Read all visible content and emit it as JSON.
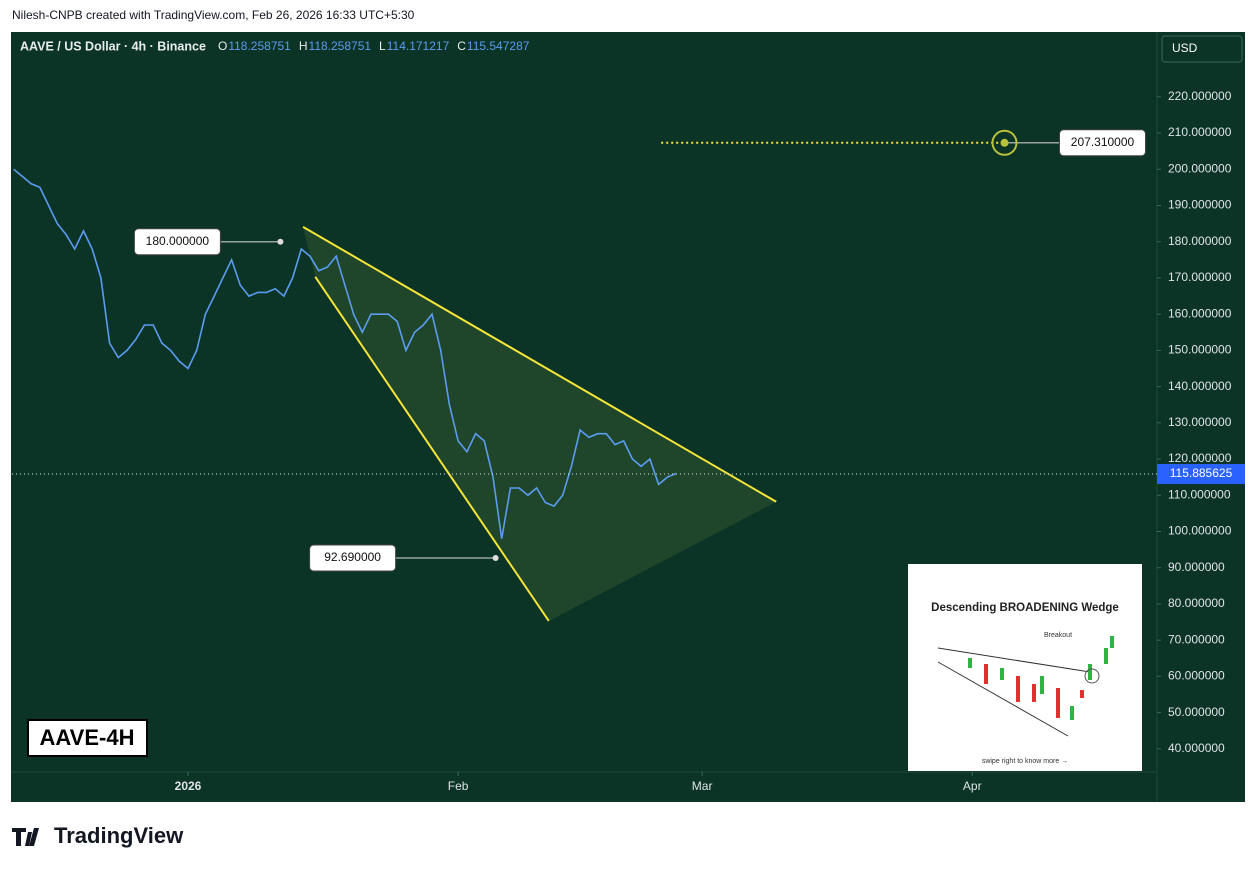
{
  "header": {
    "attribution": "Nilesh-CNPB created with TradingView.com, Feb 26, 2026 16:33 UTC+5:30"
  },
  "chart_data": {
    "type": "line",
    "title": "AAVE / US Dollar · 4h · Binance",
    "ohlc": [
      {
        "label": "O",
        "value": 118.258751
      },
      {
        "label": "H",
        "value": 118.258751
      },
      {
        "label": "L",
        "value": 114.171217
      },
      {
        "label": "C",
        "value": 115.547287
      }
    ],
    "currency": "USD",
    "badge": "AAVE-4H",
    "color": "#5b9cf0",
    "x": [
      -20,
      -19,
      -18,
      -17,
      -16,
      -15,
      -14,
      -13,
      -12,
      -11,
      -10,
      -9,
      -8,
      -7,
      -6,
      -5,
      -4,
      -3,
      -2,
      -1,
      0,
      1,
      2,
      3,
      4,
      5,
      6,
      7,
      8,
      9,
      10,
      11,
      12,
      13,
      14,
      15,
      16,
      17,
      18,
      19,
      20,
      21,
      22,
      23,
      24,
      25,
      26,
      27,
      28,
      29,
      30,
      31,
      32,
      33,
      34,
      35,
      36,
      37,
      38,
      39,
      40,
      41,
      42,
      43,
      44,
      45,
      46,
      47,
      48,
      49,
      50,
      51,
      52,
      53,
      54,
      55,
      56
    ],
    "values": [
      200,
      198,
      196,
      195,
      190,
      185,
      182,
      178,
      183,
      178,
      170,
      152,
      148,
      150,
      153,
      157,
      157,
      152,
      150,
      147,
      145,
      150,
      160,
      165,
      170,
      175,
      168,
      165,
      166,
      166,
      167,
      165,
      170,
      178,
      176,
      172,
      173,
      176,
      168,
      160,
      155,
      160,
      160,
      160,
      158,
      150,
      155,
      157,
      160,
      150,
      135,
      125,
      122,
      127,
      125,
      115,
      98,
      112,
      112,
      110,
      112,
      108,
      107,
      110,
      118,
      128,
      126,
      127,
      127,
      124,
      125,
      120,
      118,
      120,
      113,
      115,
      116
    ],
    "xlim": [
      -20.2,
      111.2
    ],
    "xticks": [
      {
        "value": 0,
        "label": "2026"
      },
      {
        "value": 31,
        "label": "Feb"
      },
      {
        "value": 59,
        "label": "Mar"
      },
      {
        "value": 90,
        "label": "Apr"
      }
    ],
    "ylim": [
      33.6,
      237.9
    ],
    "yticks": [
      {
        "value": 40,
        "label": "40.000000"
      },
      {
        "value": 50,
        "label": "50.000000"
      },
      {
        "value": 60,
        "label": "60.000000"
      },
      {
        "value": 70,
        "label": "70.000000"
      },
      {
        "value": 80,
        "label": "80.000000"
      },
      {
        "value": 90,
        "label": "90.000000"
      },
      {
        "value": 100,
        "label": "100.000000"
      },
      {
        "value": 110,
        "label": "110.000000"
      },
      {
        "value": 120,
        "label": "120.000000"
      },
      {
        "value": 130,
        "label": "130.000000"
      },
      {
        "value": 140,
        "label": "140.000000"
      },
      {
        "value": 150,
        "label": "150.000000"
      },
      {
        "value": 160,
        "label": "160.000000"
      },
      {
        "value": 170,
        "label": "170.000000"
      },
      {
        "value": 180,
        "label": "180.000000"
      },
      {
        "value": 190,
        "label": "190.000000"
      },
      {
        "value": 200,
        "label": "200.000000"
      },
      {
        "value": 210,
        "label": "210.000000"
      },
      {
        "value": 220,
        "label": "220.000000"
      }
    ],
    "grid": false,
    "last_price": 115.885625,
    "annotations": [
      {
        "x": 10.6,
        "y": {
          "value": 180,
          "label": "180.000000"
        }
      },
      {
        "x": 35.3,
        "y": {
          "value": 92.69,
          "label": "92.690000"
        }
      },
      {
        "x": 93.7,
        "y": {
          "value": 207.31,
          "label": "207.310000"
        }
      }
    ],
    "trendlines": [
      {
        "x": [
          13.2,
          67.5
        ],
        "y": [
          184.1,
          108.2
        ]
      },
      {
        "x": [
          14.6,
          41.4
        ],
        "y": [
          170.3,
          75.3
        ]
      }
    ],
    "target_line": {
      "x": [
        54.3,
        93.7
      ],
      "y": 207.31
    }
  },
  "inset": {
    "title": "Descending BROADENING Wedge",
    "breakout": "Breakout",
    "caption": "swipe right to know more →"
  },
  "footer": {
    "brand": "TradingView"
  }
}
